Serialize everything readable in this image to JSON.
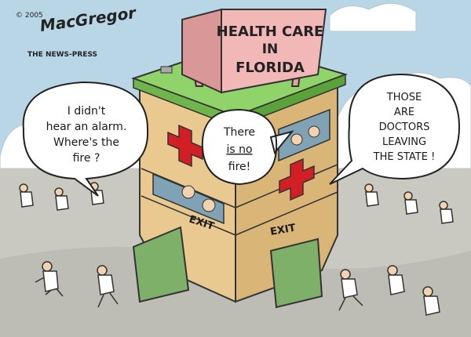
{
  "credit": {
    "copyright": "© 2005",
    "signature": "MacGregor",
    "publication": "THE NEWS-PRESS"
  },
  "sign": {
    "lines": [
      "HEALTH CARE",
      "IN",
      "FLORIDA"
    ]
  },
  "building": {
    "exit_left": "EXIT",
    "exit_right": "EXIT"
  },
  "bubbles": {
    "left": [
      "I didn't",
      "hear an alarm.",
      "Where's the",
      "fire ?"
    ],
    "middle": [
      "There",
      "is no",
      "fire!"
    ],
    "right": [
      "THOSE",
      "ARE",
      "DOCTORS",
      "LEAVING",
      "THE STATE !"
    ]
  },
  "colors": {
    "sky": "#b9d6e6",
    "ground": "#c9c9c2",
    "roof": "#8fd36a",
    "wall_left": "#e9c98f",
    "wall_right": "#d9b577",
    "sign": "#f2b8b8",
    "cross": "#d21f26",
    "window": "#7fa3b5"
  }
}
